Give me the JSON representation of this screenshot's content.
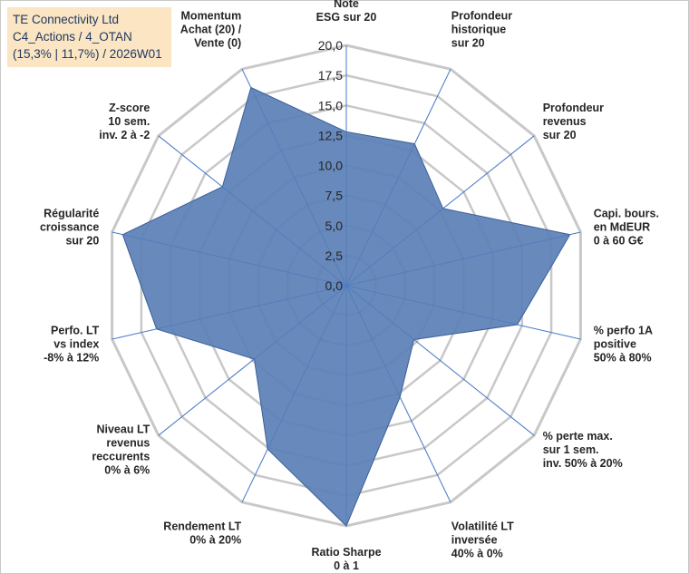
{
  "title": {
    "line1": "TE Connectivity Ltd",
    "line2": "C4_Actions / 4_OTAN",
    "line3": "(15,3% | 11,7%) / 2026W01"
  },
  "chart_data": {
    "type": "radar",
    "rmin": 0,
    "rmax": 20,
    "tick_values": [
      0,
      2.5,
      5,
      7.5,
      10,
      12.5,
      15,
      17.5,
      20
    ],
    "tick_labels": [
      "0,0",
      "2,5",
      "5,0",
      "7,5",
      "10,0",
      "12,5",
      "15,0",
      "17,5",
      "20,0"
    ],
    "axes": [
      {
        "label": [
          "Note",
          "ESG sur 20"
        ],
        "value": 12.8
      },
      {
        "label": [
          "Profondeur",
          "historique",
          "sur 20"
        ],
        "value": 13.1
      },
      {
        "label": [
          "Profondeur",
          "revenus",
          "sur 20"
        ],
        "value": 10.3
      },
      {
        "label": [
          "Capi. bours.",
          "en MdEUR",
          "0 à 60 G€"
        ],
        "value": 19.1
      },
      {
        "label": [
          "% perfo 1A",
          "positive",
          "50% à 80%"
        ],
        "value": 14.6
      },
      {
        "label": [
          "% perte max.",
          "sur 1 sem.",
          "inv. 50% à 20%"
        ],
        "value": 7.2
      },
      {
        "label": [
          "Volatilité LT",
          "inversée",
          "40% à 0%"
        ],
        "value": 10.3
      },
      {
        "label": [
          "Ratio Sharpe",
          "0 à 1"
        ],
        "value": 20.0
      },
      {
        "label": [
          "Rendement LT",
          "0% à 20%"
        ],
        "value": 15.1
      },
      {
        "label": [
          "Niveau LT",
          "revenus",
          "reccurents",
          "0% à 6%"
        ],
        "value": 9.8
      },
      {
        "label": [
          "Perfo. LT",
          "vs index",
          "-8% à 12%"
        ],
        "value": 16.2
      },
      {
        "label": [
          "Régularité",
          "croissance",
          "sur 20"
        ],
        "value": 19.1
      },
      {
        "label": [
          "Z-score",
          "10 sem.",
          "inv. 2 à -2"
        ],
        "value": 13.2
      },
      {
        "label": [
          "Momentum",
          "Achat (20) /",
          "Vente (0)"
        ],
        "value": 18.3
      }
    ],
    "colors": {
      "fill": "#5b7fb5",
      "stroke": "#3a5f9a",
      "grid": "#c8c8c8",
      "axis_line": "#4a7bc8"
    }
  }
}
